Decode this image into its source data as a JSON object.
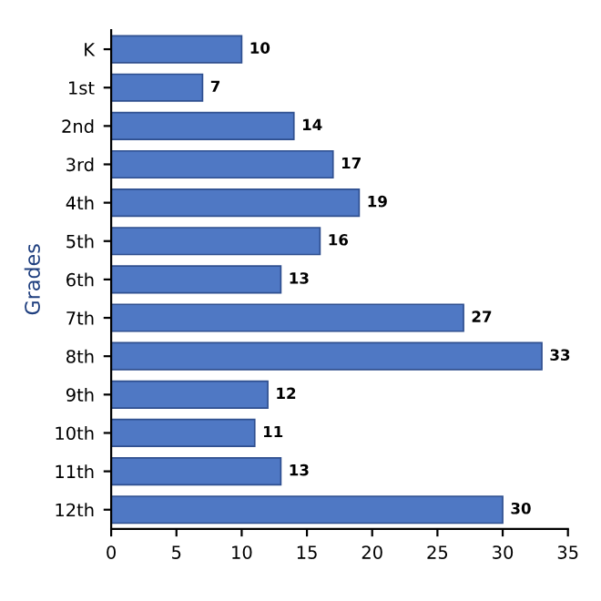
{
  "chart_data": {
    "type": "bar",
    "orientation": "horizontal",
    "ylabel": "Grades",
    "categories": [
      "K",
      "1st",
      "2nd",
      "3rd",
      "4th",
      "5th",
      "6th",
      "7th",
      "8th",
      "9th",
      "10th",
      "11th",
      "12th"
    ],
    "values": [
      10,
      7,
      14,
      17,
      19,
      16,
      13,
      27,
      33,
      12,
      11,
      13,
      30
    ],
    "color": "#4f78c4",
    "xlim": [
      0,
      35
    ],
    "xticks": [
      0,
      5,
      10,
      15,
      20,
      25,
      30,
      35
    ],
    "data_labels": true,
    "grid": false,
    "legend": false
  }
}
